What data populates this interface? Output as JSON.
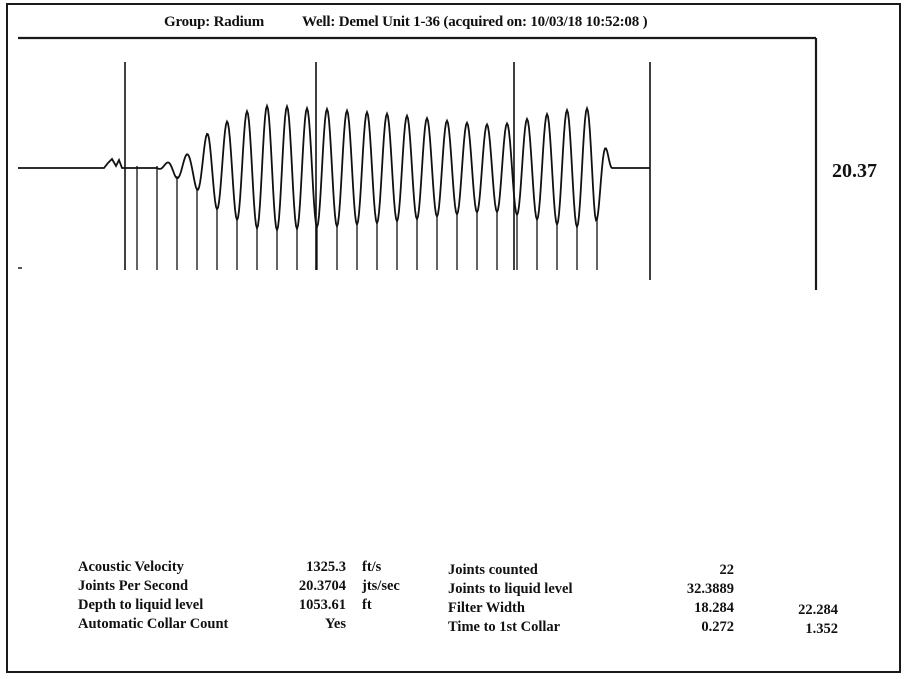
{
  "header": {
    "group_label": "Group: Radium",
    "well_label": "Well: Demel Unit 1-36",
    "acquired": "(acquired on: 10/03/18 10:52:08 )"
  },
  "readout_value": "20.37",
  "chart_data": {
    "type": "line",
    "title": "",
    "xlabel": "",
    "ylabel": "",
    "grid": false,
    "note_joints_per_second": 20.37,
    "series": [
      {
        "values": [
          0,
          0,
          0,
          0.15,
          0.25,
          0.6,
          0.75,
          0.9,
          1.0,
          1.0,
          0.98,
          0.95,
          0.95,
          0.92,
          0.9,
          0.88,
          0.85,
          0.82,
          0.78,
          0.75,
          0.72,
          0.7,
          0.72,
          0.78,
          0.85,
          0.92,
          0.95,
          0.97,
          0
        ]
      }
    ],
    "collar_markers": 22
  },
  "colors": {
    "line": "#111111",
    "frame": "#1a1a1a"
  },
  "params_left": [
    {
      "label": "Acoustic Velocity",
      "value": "1325.3",
      "unit": "ft/s"
    },
    {
      "label": "Joints Per Second",
      "value": "20.3704",
      "unit": "jts/sec"
    },
    {
      "label": "Depth to liquid level",
      "value": "1053.61",
      "unit": "ft"
    },
    {
      "label": "Automatic Collar Count",
      "value": "Yes",
      "unit": ""
    }
  ],
  "params_right": [
    {
      "label": "Joints counted",
      "value": "22",
      "value2": ""
    },
    {
      "label": "Joints to liquid level",
      "value": "32.3889",
      "value2": ""
    },
    {
      "label": "Filter Width",
      "value": "18.284",
      "value2": "22.284"
    },
    {
      "label": "Time to 1st Collar",
      "value": "0.272",
      "value2": "1.352"
    }
  ]
}
